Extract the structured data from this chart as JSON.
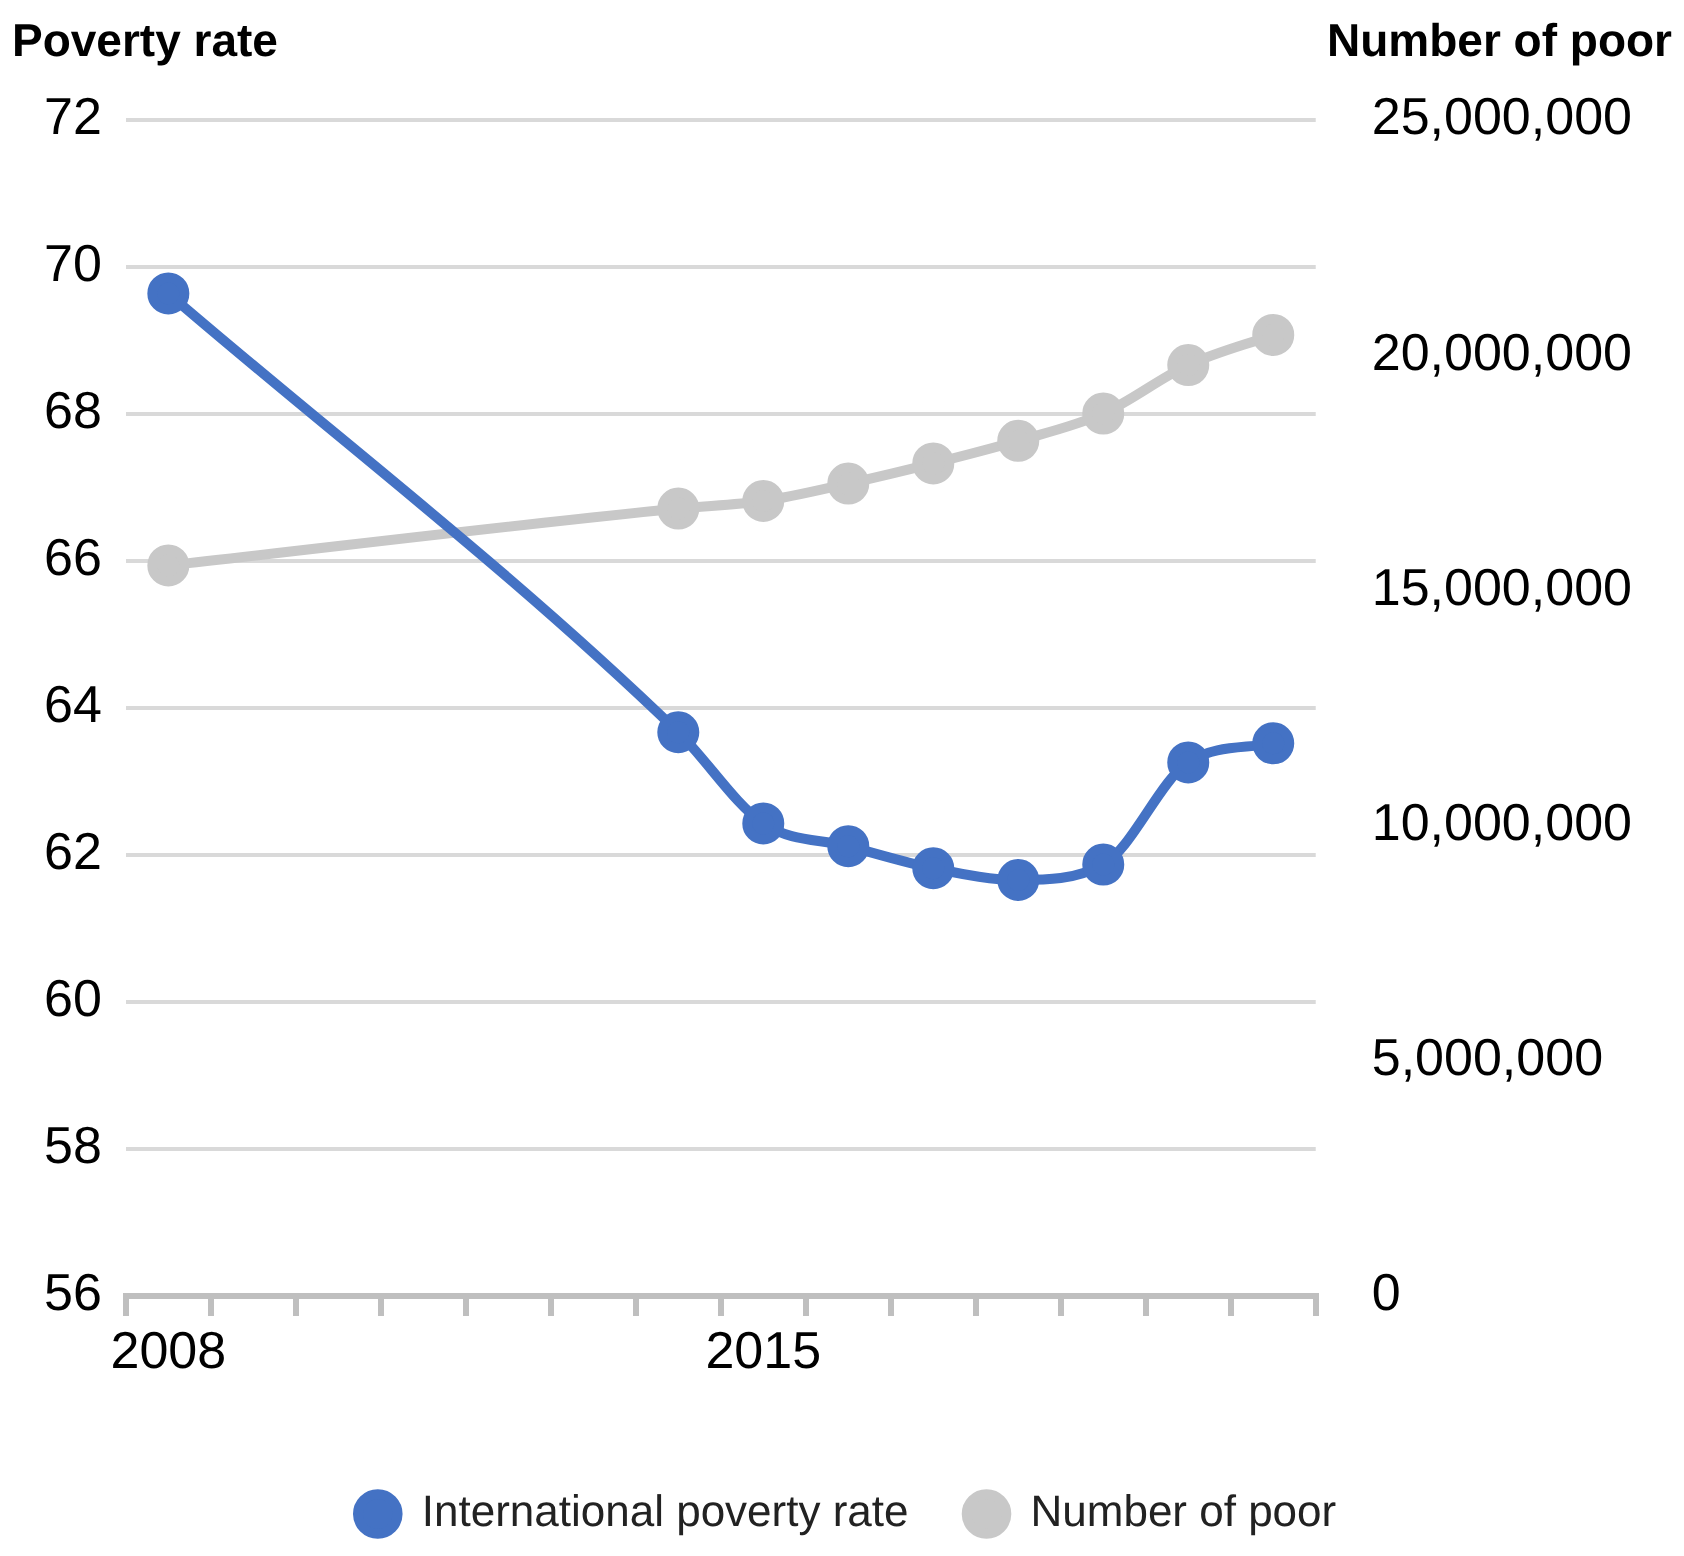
{
  "chart_data": {
    "type": "line",
    "ylabel": "Poverty rate",
    "y2label": "Number of poor",
    "categories": [
      "2008",
      null,
      null,
      null,
      null,
      null,
      null,
      "2015",
      null,
      null,
      null,
      null,
      null,
      null
    ],
    "series": [
      {
        "name": "International poverty rate",
        "color": "#4472c4",
        "values": [
          69.64,
          null,
          null,
          null,
          null,
          null,
          63.67,
          62.43,
          62.12,
          61.82,
          61.66,
          61.87,
          63.26,
          63.52
        ]
      },
      {
        "name": "Number of poor",
        "color": "#c8c8c8",
        "axis": "y2",
        "values": [
          15530000,
          null,
          null,
          null,
          null,
          null,
          16740000,
          16900000,
          17270000,
          17700000,
          18180000,
          18760000,
          19790000,
          20430000
        ]
      }
    ],
    "ylim": [
      56,
      72
    ],
    "yticks": [
      56,
      58,
      60,
      62,
      64,
      66,
      68,
      70,
      72
    ],
    "y2lim": [
      0,
      25000000
    ],
    "y2ticks": [
      {
        "value": 0,
        "label": "0"
      },
      {
        "value": 5000000,
        "label": "5,000,000"
      },
      {
        "value": 10000000,
        "label": "10,000,000"
      },
      {
        "value": 15000000,
        "label": "15,000,000"
      },
      {
        "value": 20000000,
        "label": "20,000,000"
      },
      {
        "value": 25000000,
        "label": "25,000,000"
      }
    ],
    "grid": "y",
    "legend": "bottom",
    "marker": "circle"
  }
}
